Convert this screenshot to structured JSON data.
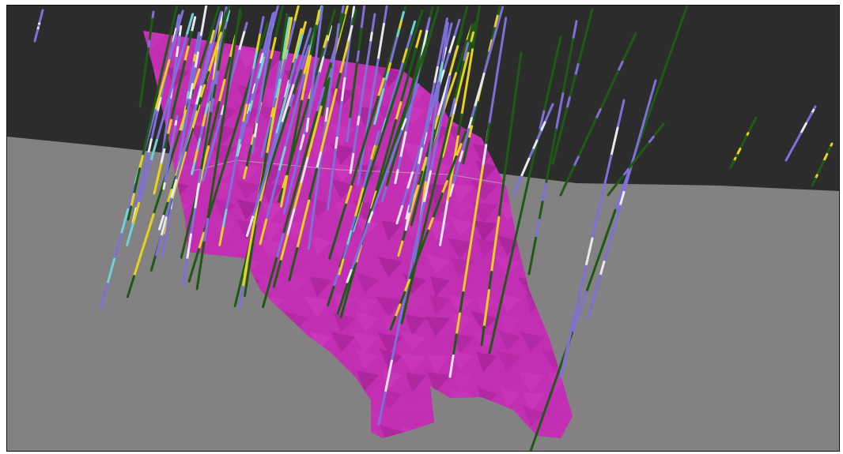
{
  "view": {
    "type": "3d-geological-model",
    "colors": {
      "sky": "#232323",
      "terrain_far": "#2c2c2c",
      "ground_plane": "#838181",
      "orebody": "#c22fb2",
      "orebody_light": "#d13cc0",
      "orebody_shadow": "#9a1f8d",
      "drillhole_blue": "#7d70d8",
      "drillhole_green": "#1e5a16",
      "drillhole_yellow": "#e6d21f",
      "drillhole_cyan": "#6fd3d8",
      "drillhole_white": "#e8e8f0"
    }
  }
}
